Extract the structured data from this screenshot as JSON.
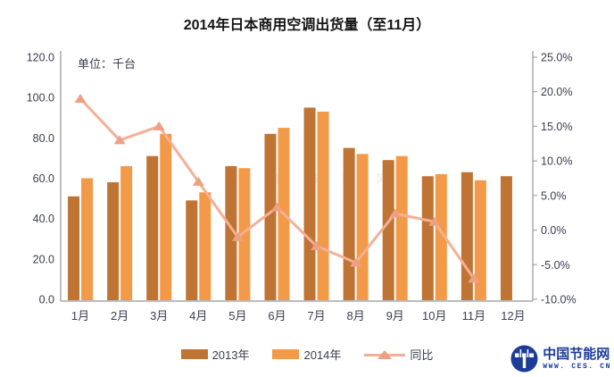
{
  "chart_data": {
    "type": "bar+line-combo",
    "title": "2014年日本商用空调出货量（至11月）",
    "unit_label": "单位：千台",
    "categories": [
      "1月",
      "2月",
      "3月",
      "4月",
      "5月",
      "6月",
      "7月",
      "8月",
      "9月",
      "10月",
      "11月",
      "12月"
    ],
    "series": [
      {
        "name": "2013年",
        "type": "bar",
        "axis": "left",
        "color": "#bf7434",
        "values": [
          51,
          58,
          71,
          49,
          66,
          82,
          95,
          75,
          69,
          61,
          63,
          61
        ]
      },
      {
        "name": "2014年",
        "type": "bar",
        "axis": "left",
        "color": "#f39a49",
        "values": [
          60,
          66,
          82,
          53,
          65,
          85,
          93,
          72,
          71,
          62,
          59,
          null
        ]
      },
      {
        "name": "同比",
        "type": "line",
        "axis": "right",
        "color": "#f4b096",
        "marker": "triangle-up",
        "marker_color": "#eda083",
        "values": [
          19.0,
          13.0,
          15.0,
          7.0,
          -1.0,
          3.3,
          -2.3,
          -4.7,
          2.4,
          1.2,
          -7.0,
          null
        ]
      }
    ],
    "left_axis": {
      "min": 0,
      "max": 120,
      "step": 20,
      "tick_labels": [
        "0.0",
        "20.0",
        "40.0",
        "60.0",
        "80.0",
        "100.0",
        "120.0"
      ]
    },
    "right_axis": {
      "min": -10,
      "max": 25,
      "step": 5,
      "tick_labels": [
        "-10.0%",
        "-5.0%",
        "0.0%",
        "5.0%",
        "10.0%",
        "15.0%",
        "20.0%",
        "25.0%"
      ]
    },
    "grid": false,
    "legend_position": "bottom"
  },
  "watermark": {
    "text": "中国节能网"
  },
  "logo": {
    "site_name": "中国节能网",
    "url": "WWW. CES. CN",
    "color": "#1c3c99"
  }
}
